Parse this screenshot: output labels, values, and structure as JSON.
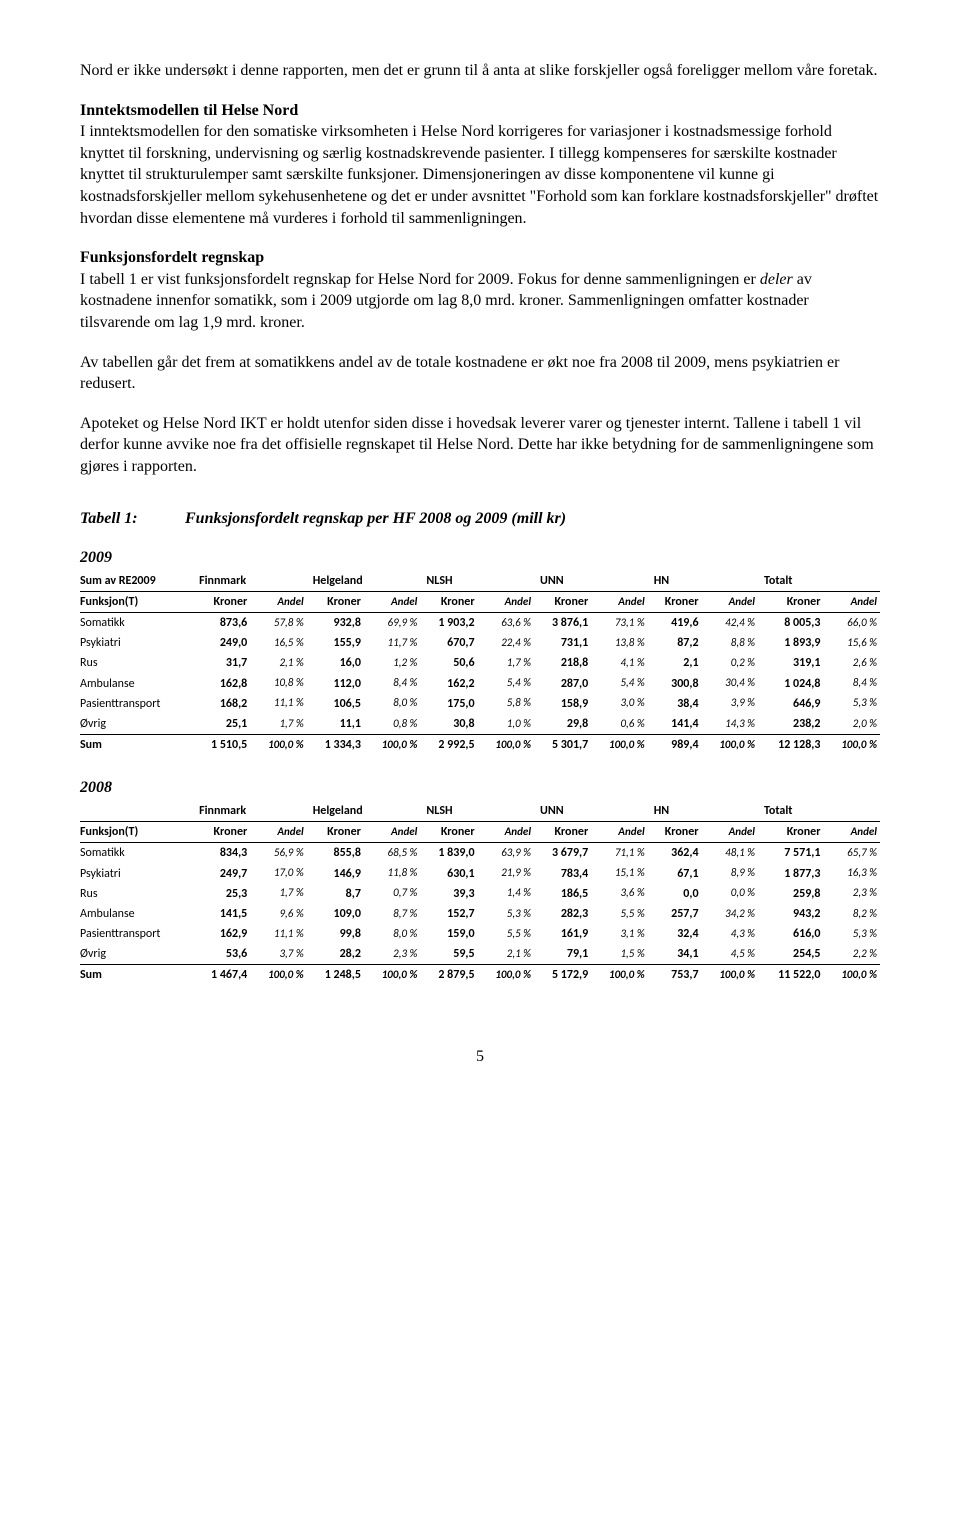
{
  "para1": "Nord er ikke undersøkt i denne rapporten, men det er grunn til å anta at slike forskjeller også foreligger mellom våre foretak.",
  "h1": "Inntektsmodellen til Helse Nord",
  "para2": "I inntektsmodellen for den somatiske virksomheten i Helse Nord korrigeres for variasjoner i kostnadsmessige forhold knyttet til forskning, undervisning og særlig kostnadskrevende pasienter. I tillegg kompenseres for særskilte kostnader knyttet til strukturulemper samt særskilte funksjoner. Dimensjoneringen av disse komponentene vil kunne gi kostnadsforskjeller mellom sykehusenhetene og det er under avsnittet \"Forhold som kan forklare kostnadsforskjeller\" drøftet hvordan disse elementene må vurderes i forhold til sammenligningen.",
  "h2": "Funksjonsfordelt regnskap",
  "para3a": "I tabell 1 er vist funksjonsfordelt regnskap for Helse Nord for 2009. Fokus for denne sammenligningen er ",
  "para3b": "deler",
  "para3c": " av kostnadene innenfor somatikk, som i 2009 utgjorde om lag 8,0 mrd. kroner. Sammenligningen omfatter kostnader tilsvarende om lag 1,9 mrd. kroner.",
  "para4": "Av tabellen går det frem at somatikkens andel av de totale kostnadene er økt noe fra 2008 til 2009, mens psykiatrien er redusert.",
  "para5": "Apoteket og Helse Nord IKT er holdt utenfor siden disse i hovedsak leverer varer og tjenester internt. Tallene i tabell 1 vil derfor kunne avvike noe fra det offisielle regnskapet til Helse Nord. Dette har ikke betydning for de sammenligningene som gjøres i rapporten.",
  "tab1_label": "Tabell 1:",
  "tab1_title": "Funksjonsfordelt regnskap per HF 2008 og 2009 (mill kr)",
  "year2009": "2009",
  "year2008": "2008",
  "sum2009label": "Sum av RE2009",
  "funksjonT": "Funksjon(T)",
  "kroner": "Kroner",
  "andel": "Andel",
  "sum": "Sum",
  "groups": [
    "Finnmark",
    "Helgeland",
    "NLSH",
    "UNN",
    "HN",
    "Totalt"
  ],
  "rows2009": [
    {
      "label": "Somatikk",
      "v": [
        "873,6",
        "57,8 %",
        "932,8",
        "69,9 %",
        "1 903,2",
        "63,6 %",
        "3 876,1",
        "73,1 %",
        "419,6",
        "42,4 %",
        "8 005,3",
        "66,0 %"
      ]
    },
    {
      "label": "Psykiatri",
      "v": [
        "249,0",
        "16,5 %",
        "155,9",
        "11,7 %",
        "670,7",
        "22,4 %",
        "731,1",
        "13,8 %",
        "87,2",
        "8,8 %",
        "1 893,9",
        "15,6 %"
      ]
    },
    {
      "label": "Rus",
      "v": [
        "31,7",
        "2,1 %",
        "16,0",
        "1,2 %",
        "50,6",
        "1,7 %",
        "218,8",
        "4,1 %",
        "2,1",
        "0,2 %",
        "319,1",
        "2,6 %"
      ]
    },
    {
      "label": "Ambulanse",
      "v": [
        "162,8",
        "10,8 %",
        "112,0",
        "8,4 %",
        "162,2",
        "5,4 %",
        "287,0",
        "5,4 %",
        "300,8",
        "30,4 %",
        "1 024,8",
        "8,4 %"
      ]
    },
    {
      "label": "Pasienttransport",
      "v": [
        "168,2",
        "11,1 %",
        "106,5",
        "8,0 %",
        "175,0",
        "5,8 %",
        "158,9",
        "3,0 %",
        "38,4",
        "3,9 %",
        "646,9",
        "5,3 %"
      ]
    },
    {
      "label": "Øvrig",
      "v": [
        "25,1",
        "1,7 %",
        "11,1",
        "0,8 %",
        "30,8",
        "1,0 %",
        "29,8",
        "0,6 %",
        "141,4",
        "14,3 %",
        "238,2",
        "2,0 %"
      ]
    }
  ],
  "sum2009": [
    "1 510,5",
    "100,0 %",
    "1 334,3",
    "100,0 %",
    "2 992,5",
    "100,0 %",
    "5 301,7",
    "100,0 %",
    "989,4",
    "100,0 %",
    "12 128,3",
    "100,0 %"
  ],
  "rows2008": [
    {
      "label": "Somatikk",
      "v": [
        "834,3",
        "56,9 %",
        "855,8",
        "68,5 %",
        "1 839,0",
        "63,9 %",
        "3 679,7",
        "71,1 %",
        "362,4",
        "48,1 %",
        "7 571,1",
        "65,7 %"
      ]
    },
    {
      "label": "Psykiatri",
      "v": [
        "249,7",
        "17,0 %",
        "146,9",
        "11,8 %",
        "630,1",
        "21,9 %",
        "783,4",
        "15,1 %",
        "67,1",
        "8,9 %",
        "1 877,3",
        "16,3 %"
      ]
    },
    {
      "label": "Rus",
      "v": [
        "25,3",
        "1,7 %",
        "8,7",
        "0,7 %",
        "39,3",
        "1,4 %",
        "186,5",
        "3,6 %",
        "0,0",
        "0,0 %",
        "259,8",
        "2,3 %"
      ]
    },
    {
      "label": "Ambulanse",
      "v": [
        "141,5",
        "9,6 %",
        "109,0",
        "8,7 %",
        "152,7",
        "5,3 %",
        "282,3",
        "5,5 %",
        "257,7",
        "34,2 %",
        "943,2",
        "8,2 %"
      ]
    },
    {
      "label": "Pasienttransport",
      "v": [
        "162,9",
        "11,1 %",
        "99,8",
        "8,0 %",
        "159,0",
        "5,5 %",
        "161,9",
        "3,1 %",
        "32,4",
        "4,3 %",
        "616,0",
        "5,3 %"
      ]
    },
    {
      "label": "Øvrig",
      "v": [
        "53,6",
        "3,7 %",
        "28,2",
        "2,3 %",
        "59,5",
        "2,1 %",
        "79,1",
        "1,5 %",
        "34,1",
        "4,5 %",
        "254,5",
        "2,2 %"
      ]
    }
  ],
  "sum2008": [
    "1 467,4",
    "100,0 %",
    "1 248,5",
    "100,0 %",
    "2 879,5",
    "100,0 %",
    "5 172,9",
    "100,0 %",
    "753,7",
    "100,0 %",
    "11 522,0",
    "100,0 %"
  ],
  "page": "5"
}
